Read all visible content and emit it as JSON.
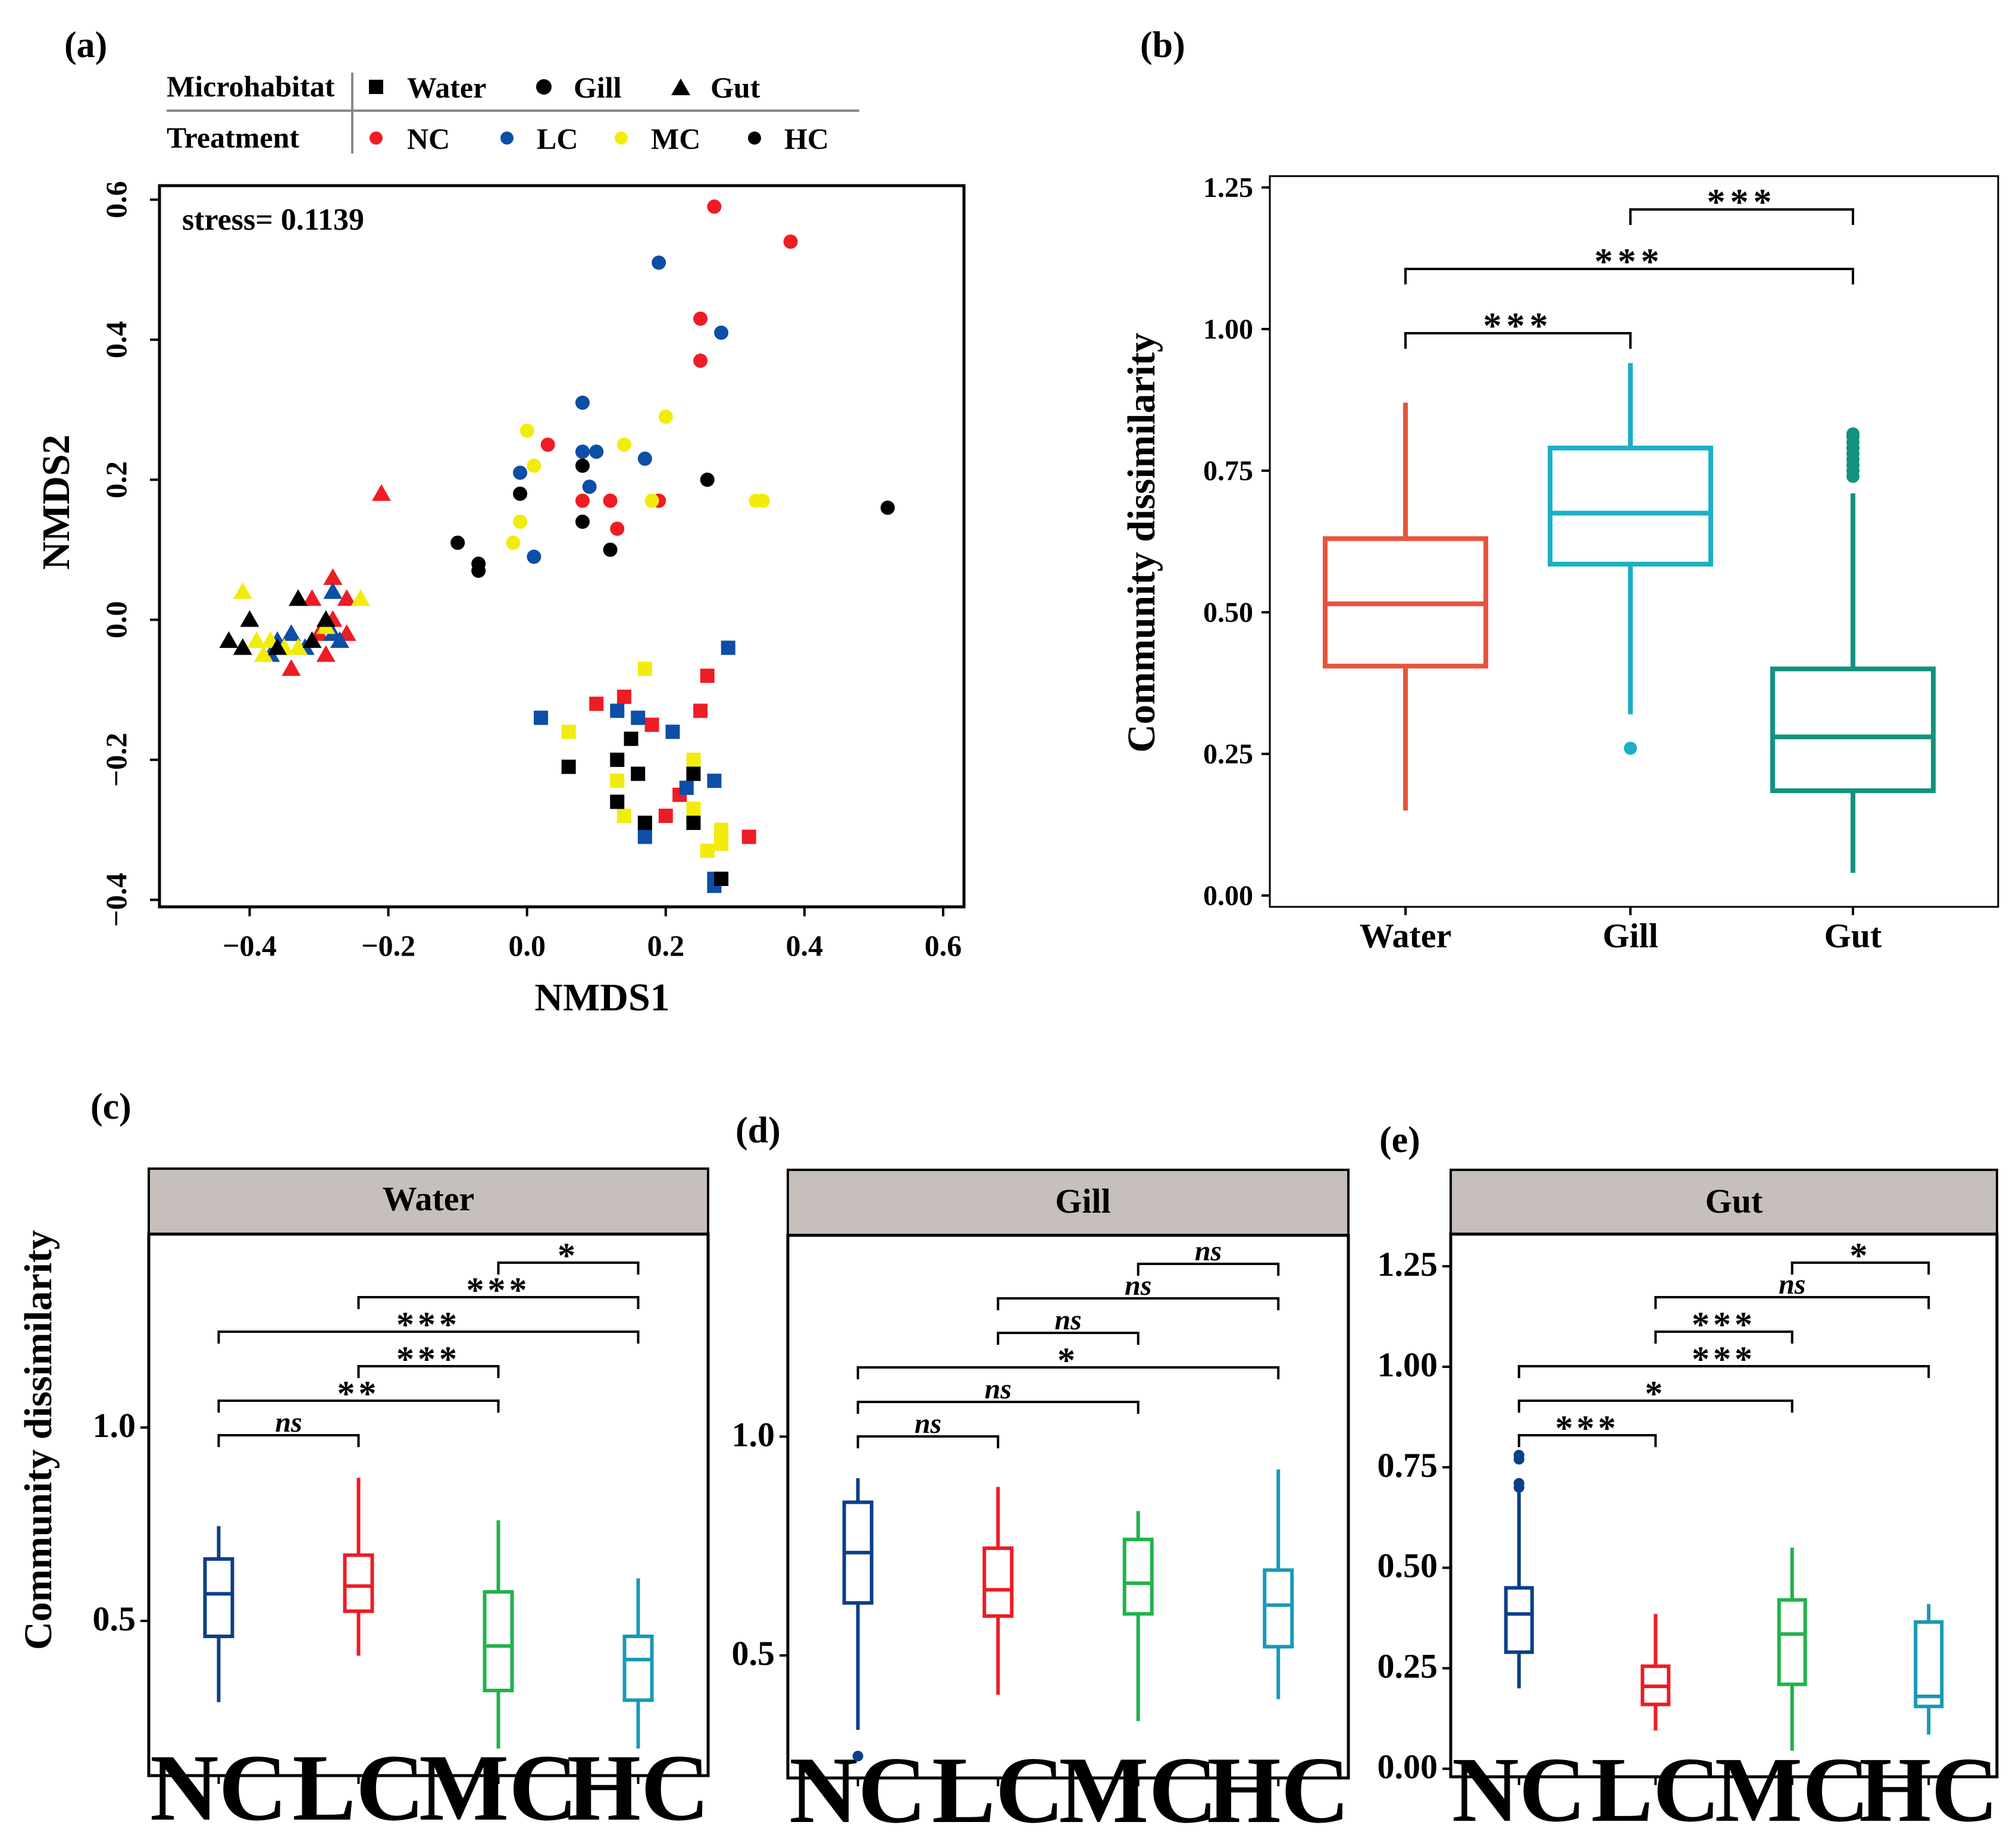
{
  "colors": {
    "NC": "#ee1c25",
    "LC": "#0d4ea6",
    "MC": "#f2ec0c",
    "HC": "#000000",
    "Water": "#e8533c",
    "Gill": "#1ab0c6",
    "Gut": "#13927e",
    "c_NC": "#0b3f8a",
    "c_LC": "#ed1c24",
    "c_MC": "#1fb34a",
    "c_HC": "#1899b5",
    "strip": "#c7bfbc"
  },
  "panel_a": {
    "label": "(a)",
    "legend": {
      "microhabitat_title": "Microhabitat",
      "treatment_title": "Treatment",
      "shapes": [
        {
          "name": "Water",
          "shape": "square"
        },
        {
          "name": "Gill",
          "shape": "circle"
        },
        {
          "name": "Gut",
          "shape": "triangle"
        }
      ],
      "treatments": [
        "NC",
        "LC",
        "MC",
        "HC"
      ]
    },
    "stress": "stress= 0.1139",
    "xlabel": "NMDS1",
    "ylabel": "NMDS2",
    "xticks": [
      "−0.4",
      "−0.2",
      "0.0",
      "0.2",
      "0.4",
      "0.6"
    ],
    "yticks": [
      "−0.4",
      "−0.2",
      "0.0",
      "0.2",
      "0.4",
      "0.6"
    ]
  },
  "panel_b": {
    "label": "(b)",
    "ylabel": "Community dissimilarity",
    "yticks": [
      "0.00",
      "0.25",
      "0.50",
      "0.75",
      "1.00",
      "1.25"
    ],
    "categories": [
      "Water",
      "Gill",
      "Gut"
    ],
    "significance": [
      {
        "pair": "Water-Gill",
        "label": "***"
      },
      {
        "pair": "Water-Gut",
        "label": "***"
      },
      {
        "pair": "Gill-Gut",
        "label": "***"
      }
    ]
  },
  "panel_c": {
    "label": "(c)",
    "strip": "Water",
    "ylabel": "Community dissimilarity",
    "yticks": [
      "0.5",
      "1.0"
    ],
    "categories": [
      "NC",
      "LC",
      "MC",
      "HC"
    ],
    "significance": [
      {
        "pair": "NC-LC",
        "label": "ns"
      },
      {
        "pair": "NC-MC",
        "label": "**"
      },
      {
        "pair": "NC-HC",
        "label": "***"
      },
      {
        "pair": "LC-MC",
        "label": "***"
      },
      {
        "pair": "LC-HC",
        "label": "***"
      },
      {
        "pair": "MC-HC",
        "label": "*"
      }
    ]
  },
  "panel_d": {
    "label": "(d)",
    "strip": "Gill",
    "yticks": [
      "0.5",
      "1.0"
    ],
    "categories": [
      "NC",
      "LC",
      "MC",
      "HC"
    ],
    "significance": [
      {
        "pair": "NC-LC",
        "label": "ns"
      },
      {
        "pair": "NC-MC",
        "label": "ns"
      },
      {
        "pair": "NC-HC",
        "label": "*"
      },
      {
        "pair": "LC-MC",
        "label": "ns"
      },
      {
        "pair": "LC-HC",
        "label": "ns"
      },
      {
        "pair": "MC-HC",
        "label": "ns"
      }
    ]
  },
  "panel_e": {
    "label": "(e)",
    "strip": "Gut",
    "yticks": [
      "0.00",
      "0.25",
      "0.50",
      "0.75",
      "1.00",
      "1.25"
    ],
    "categories": [
      "NC",
      "LC",
      "MC",
      "HC"
    ],
    "significance": [
      {
        "pair": "NC-LC",
        "label": "***"
      },
      {
        "pair": "NC-MC",
        "label": "*"
      },
      {
        "pair": "NC-HC",
        "label": "***"
      },
      {
        "pair": "LC-MC",
        "label": "***"
      },
      {
        "pair": "LC-HC",
        "label": "ns"
      },
      {
        "pair": "MC-HC",
        "label": "*"
      }
    ]
  },
  "chart_data": [
    {
      "panel": "a",
      "type": "scatter",
      "xlabel": "NMDS1",
      "ylabel": "NMDS2",
      "xlim": [
        -0.53,
        0.63
      ],
      "ylim": [
        -0.41,
        0.62
      ],
      "annotation": "stress= 0.1139",
      "points": [
        [
          0.27,
          0.59,
          "NC",
          "circle"
        ],
        [
          0.38,
          0.54,
          "NC",
          "circle"
        ],
        [
          0.25,
          0.43,
          "NC",
          "circle"
        ],
        [
          0.25,
          0.37,
          "NC",
          "circle"
        ],
        [
          0.03,
          0.25,
          "NC",
          "circle"
        ],
        [
          0.08,
          0.17,
          "NC",
          "circle"
        ],
        [
          0.12,
          0.17,
          "NC",
          "circle"
        ],
        [
          0.19,
          0.17,
          "NC",
          "circle"
        ],
        [
          0.13,
          0.13,
          "NC",
          "circle"
        ],
        [
          0.19,
          0.51,
          "LC",
          "circle"
        ],
        [
          0.28,
          0.41,
          "LC",
          "circle"
        ],
        [
          0.08,
          0.31,
          "LC",
          "circle"
        ],
        [
          0.08,
          0.24,
          "LC",
          "circle"
        ],
        [
          0.1,
          0.24,
          "LC",
          "circle"
        ],
        [
          0.17,
          0.23,
          "LC",
          "circle"
        ],
        [
          -0.01,
          0.21,
          "LC",
          "circle"
        ],
        [
          0.09,
          0.19,
          "LC",
          "circle"
        ],
        [
          0.01,
          0.09,
          "LC",
          "circle"
        ],
        [
          0.0,
          0.27,
          "MC",
          "circle"
        ],
        [
          0.14,
          0.25,
          "MC",
          "circle"
        ],
        [
          0.2,
          0.29,
          "MC",
          "circle"
        ],
        [
          0.01,
          0.22,
          "MC",
          "circle"
        ],
        [
          0.18,
          0.17,
          "MC",
          "circle"
        ],
        [
          0.33,
          0.17,
          "MC",
          "circle"
        ],
        [
          0.34,
          0.17,
          "MC",
          "circle"
        ],
        [
          -0.01,
          0.14,
          "MC",
          "circle"
        ],
        [
          -0.02,
          0.11,
          "MC",
          "circle"
        ],
        [
          0.08,
          0.22,
          "HC",
          "circle"
        ],
        [
          0.26,
          0.2,
          "HC",
          "circle"
        ],
        [
          -0.01,
          0.18,
          "HC",
          "circle"
        ],
        [
          0.52,
          0.16,
          "HC",
          "circle"
        ],
        [
          0.08,
          0.14,
          "HC",
          "circle"
        ],
        [
          -0.1,
          0.11,
          "HC",
          "circle"
        ],
        [
          0.12,
          0.1,
          "HC",
          "circle"
        ],
        [
          -0.07,
          0.08,
          "HC",
          "circle"
        ],
        [
          -0.07,
          0.07,
          "HC",
          "circle"
        ],
        [
          0.27,
          -0.37,
          "LC",
          "square"
        ],
        [
          0.28,
          -0.37,
          "HC",
          "square"
        ],
        [
          -0.21,
          0.18,
          "NC",
          "triangle"
        ],
        [
          -0.28,
          0.06,
          "NC",
          "triangle"
        ],
        [
          -0.31,
          0.03,
          "NC",
          "triangle"
        ],
        [
          -0.26,
          0.03,
          "NC",
          "triangle"
        ],
        [
          -0.28,
          0.0,
          "NC",
          "triangle"
        ],
        [
          -0.26,
          -0.02,
          "NC",
          "triangle"
        ],
        [
          -0.3,
          -0.02,
          "NC",
          "triangle"
        ],
        [
          -0.34,
          -0.07,
          "NC",
          "triangle"
        ],
        [
          -0.29,
          -0.05,
          "NC",
          "triangle"
        ],
        [
          -0.28,
          0.04,
          "LC",
          "triangle"
        ],
        [
          -0.28,
          -0.02,
          "LC",
          "triangle"
        ],
        [
          -0.32,
          -0.04,
          "LC",
          "triangle"
        ],
        [
          -0.34,
          -0.02,
          "LC",
          "triangle"
        ],
        [
          -0.37,
          -0.05,
          "LC",
          "triangle"
        ],
        [
          -0.36,
          -0.03,
          "LC",
          "triangle"
        ],
        [
          -0.27,
          -0.03,
          "LC",
          "triangle"
        ],
        [
          -0.41,
          0.04,
          "MC",
          "triangle"
        ],
        [
          -0.24,
          0.03,
          "MC",
          "triangle"
        ],
        [
          -0.39,
          -0.03,
          "MC",
          "triangle"
        ],
        [
          -0.37,
          -0.03,
          "MC",
          "triangle"
        ],
        [
          -0.35,
          -0.04,
          "MC",
          "triangle"
        ],
        [
          -0.29,
          -0.01,
          "MC",
          "triangle"
        ],
        [
          -0.38,
          -0.05,
          "MC",
          "triangle"
        ],
        [
          -0.33,
          -0.04,
          "MC",
          "triangle"
        ],
        [
          -0.4,
          0.0,
          "HC",
          "triangle"
        ],
        [
          -0.43,
          -0.03,
          "HC",
          "triangle"
        ],
        [
          -0.33,
          0.03,
          "HC",
          "triangle"
        ],
        [
          -0.31,
          -0.03,
          "HC",
          "triangle"
        ],
        [
          -0.29,
          0.0,
          "HC",
          "triangle"
        ],
        [
          -0.41,
          -0.04,
          "HC",
          "triangle"
        ],
        [
          -0.36,
          -0.04,
          "HC",
          "triangle"
        ]
      ],
      "square_points": [
        [
          0.26,
          -0.08,
          "NC"
        ],
        [
          0.1,
          -0.12,
          "NC"
        ],
        [
          0.14,
          -0.11,
          "NC"
        ],
        [
          0.18,
          -0.15,
          "NC"
        ],
        [
          0.25,
          -0.13,
          "NC"
        ],
        [
          0.22,
          -0.25,
          "NC"
        ],
        [
          0.2,
          -0.28,
          "NC"
        ],
        [
          0.32,
          -0.31,
          "NC"
        ],
        [
          0.28,
          -0.31,
          "NC"
        ],
        [
          0.29,
          -0.04,
          "LC"
        ],
        [
          0.02,
          -0.14,
          "LC"
        ],
        [
          0.13,
          -0.13,
          "LC"
        ],
        [
          0.16,
          -0.14,
          "LC"
        ],
        [
          0.21,
          -0.16,
          "LC"
        ],
        [
          0.23,
          -0.24,
          "LC"
        ],
        [
          0.27,
          -0.23,
          "LC"
        ],
        [
          0.17,
          -0.31,
          "LC"
        ],
        [
          0.27,
          -0.38,
          "LC"
        ],
        [
          0.17,
          -0.07,
          "MC"
        ],
        [
          0.06,
          -0.16,
          "MC"
        ],
        [
          0.24,
          -0.2,
          "MC"
        ],
        [
          0.13,
          -0.23,
          "MC"
        ],
        [
          0.14,
          -0.28,
          "MC"
        ],
        [
          0.24,
          -0.27,
          "MC"
        ],
        [
          0.28,
          -0.3,
          "MC"
        ],
        [
          0.28,
          -0.32,
          "MC"
        ],
        [
          0.26,
          -0.33,
          "MC"
        ],
        [
          0.15,
          -0.17,
          "HC"
        ],
        [
          0.13,
          -0.2,
          "HC"
        ],
        [
          0.06,
          -0.21,
          "HC"
        ],
        [
          0.16,
          -0.22,
          "HC"
        ],
        [
          0.24,
          -0.22,
          "HC"
        ],
        [
          0.13,
          -0.26,
          "HC"
        ],
        [
          0.17,
          -0.29,
          "HC"
        ],
        [
          0.24,
          -0.29,
          "HC"
        ],
        [
          0.28,
          -0.37,
          "HC"
        ]
      ]
    },
    {
      "panel": "b",
      "type": "box",
      "ylabel": "Community dissimilarity",
      "ylim": [
        -0.02,
        1.27
      ],
      "boxes": [
        {
          "name": "Water",
          "min": 0.15,
          "q1": 0.405,
          "median": 0.515,
          "q3": 0.63,
          "max": 0.87,
          "outliers": []
        },
        {
          "name": "Gill",
          "min": 0.32,
          "q1": 0.585,
          "median": 0.675,
          "q3": 0.79,
          "max": 0.94,
          "outliers": [
            0.26
          ]
        },
        {
          "name": "Gut",
          "min": 0.04,
          "q1": 0.185,
          "median": 0.28,
          "q3": 0.4,
          "max": 0.71,
          "outliers": [
            0.74,
            0.75,
            0.76,
            0.77,
            0.78,
            0.79,
            0.8,
            0.81,
            0.815
          ]
        }
      ]
    },
    {
      "panel": "c",
      "type": "box",
      "facet": "Water",
      "ylim": [
        0.1,
        1.5
      ],
      "boxes": [
        {
          "name": "NC",
          "min": 0.29,
          "q1": 0.46,
          "median": 0.57,
          "q3": 0.66,
          "max": 0.745,
          "outliers": []
        },
        {
          "name": "LC",
          "min": 0.41,
          "q1": 0.525,
          "median": 0.59,
          "q3": 0.67,
          "max": 0.87,
          "outliers": []
        },
        {
          "name": "MC",
          "min": 0.17,
          "q1": 0.32,
          "median": 0.435,
          "q3": 0.575,
          "max": 0.76,
          "outliers": []
        },
        {
          "name": "HC",
          "min": 0.17,
          "q1": 0.295,
          "median": 0.4,
          "q3": 0.46,
          "max": 0.61,
          "outliers": []
        }
      ]
    },
    {
      "panel": "d",
      "type": "box",
      "facet": "Gill",
      "ylim": [
        0.22,
        1.46
      ],
      "boxes": [
        {
          "name": "NC",
          "min": 0.33,
          "q1": 0.62,
          "median": 0.735,
          "q3": 0.85,
          "max": 0.905,
          "outliers": [
            0.27
          ]
        },
        {
          "name": "LC",
          "min": 0.41,
          "q1": 0.59,
          "median": 0.65,
          "q3": 0.745,
          "max": 0.885,
          "outliers": []
        },
        {
          "name": "MC",
          "min": 0.35,
          "q1": 0.595,
          "median": 0.665,
          "q3": 0.765,
          "max": 0.83,
          "outliers": []
        },
        {
          "name": "HC",
          "min": 0.4,
          "q1": 0.52,
          "median": 0.615,
          "q3": 0.695,
          "max": 0.925,
          "outliers": []
        }
      ]
    },
    {
      "panel": "e",
      "type": "box",
      "facet": "Gut",
      "ylim": [
        -0.02,
        1.33
      ],
      "boxes": [
        {
          "name": "NC",
          "min": 0.2,
          "q1": 0.29,
          "median": 0.385,
          "q3": 0.45,
          "max": 0.69,
          "outliers": [
            0.7,
            0.71,
            0.77,
            0.78
          ]
        },
        {
          "name": "LC",
          "min": 0.095,
          "q1": 0.16,
          "median": 0.205,
          "q3": 0.255,
          "max": 0.385,
          "outliers": []
        },
        {
          "name": "MC",
          "min": 0.045,
          "q1": 0.21,
          "median": 0.335,
          "q3": 0.42,
          "max": 0.55,
          "outliers": []
        },
        {
          "name": "HC",
          "min": 0.085,
          "q1": 0.155,
          "median": 0.18,
          "q3": 0.365,
          "max": 0.41,
          "outliers": []
        }
      ]
    }
  ]
}
